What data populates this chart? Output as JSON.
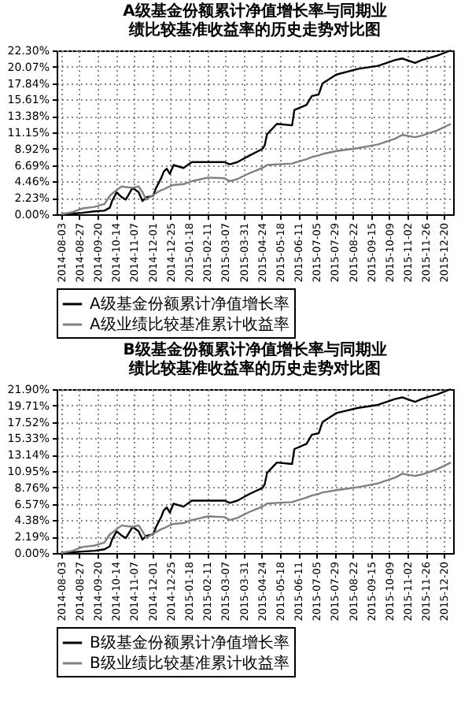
{
  "chart_data": [
    {
      "type": "line",
      "title": "A级基金份额累计净值增长率与同期业绩比较基准收益率的历史走势对比图",
      "x": [
        "2014-08-03",
        "2014-08-18",
        "2014-08-31",
        "2014-09-16",
        "2014-09-29",
        "2014-10-06",
        "2014-10-09",
        "2014-10-15",
        "2014-10-22",
        "2014-10-27",
        "2014-11-05",
        "2014-11-13",
        "2014-11-18",
        "2014-11-23",
        "2014-12-02",
        "2014-12-06",
        "2014-12-13",
        "2014-12-16",
        "2014-12-20",
        "2014-12-24",
        "2014-12-29",
        "2015-01-11",
        "2015-01-22",
        "2015-02-12",
        "2015-03-06",
        "2015-03-13",
        "2015-03-23",
        "2015-04-08",
        "2015-04-25",
        "2015-04-28",
        "2015-05-01",
        "2015-05-14",
        "2015-06-03",
        "2015-06-06",
        "2015-06-22",
        "2015-06-29",
        "2015-07-08",
        "2015-07-13",
        "2015-07-31",
        "2015-08-29",
        "2015-09-24",
        "2015-10-17",
        "2015-10-26",
        "2015-11-12",
        "2015-11-21",
        "2015-12-11",
        "2015-12-29"
      ],
      "series": [
        {
          "name": "A级基金份额累计净值增长率",
          "color": "#000000",
          "values": [
            0,
            0.1,
            0.2,
            0.4,
            0.5,
            0.9,
            1.8,
            3.0,
            2.3,
            2.0,
            3.6,
            3.0,
            1.8,
            2.3,
            2.5,
            3.6,
            5.0,
            5.8,
            6.2,
            5.5,
            6.7,
            6.3,
            7.1,
            7.1,
            7.1,
            6.8,
            7.1,
            8.0,
            8.9,
            9.4,
            10.9,
            12.3,
            12.1,
            14.2,
            14.9,
            16.1,
            16.3,
            17.8,
            19.0,
            19.8,
            20.2,
            21.0,
            21.2,
            20.6,
            21.0,
            21.6,
            22.3
          ]
        },
        {
          "name": "A级业绩比较基准累计收益率",
          "color": "#808080",
          "values": [
            0,
            0.3,
            0.8,
            1.0,
            1.4,
            2.5,
            2.8,
            3.3,
            3.8,
            3.7,
            3.6,
            3.8,
            3.0,
            2.0,
            2.6,
            2.9,
            3.3,
            3.4,
            3.6,
            3.8,
            4.0,
            4.1,
            4.5,
            5.0,
            4.9,
            4.5,
            4.8,
            5.6,
            6.3,
            6.5,
            6.7,
            6.8,
            6.9,
            7.0,
            7.5,
            7.8,
            8.0,
            8.2,
            8.6,
            9.0,
            9.5,
            10.3,
            10.8,
            10.5,
            10.7,
            11.4,
            12.3
          ]
        }
      ],
      "xlim": [
        "2014-07-28",
        "2016-01-01"
      ],
      "xticks": [
        "2014-08-03",
        "2014-08-27",
        "2014-09-20",
        "2014-10-14",
        "2014-11-07",
        "2014-12-01",
        "2014-12-25",
        "2015-01-18",
        "2015-02-11",
        "2015-03-07",
        "2015-03-31",
        "2015-04-24",
        "2015-05-18",
        "2015-06-11",
        "2015-07-05",
        "2015-07-29",
        "2015-08-22",
        "2015-09-15",
        "2015-10-09",
        "2015-11-02",
        "2015-11-26",
        "2015-12-20"
      ],
      "ylim": [
        0,
        22.3
      ],
      "yticks": [
        {
          "value": 0,
          "label": "0.00%"
        },
        {
          "value": 2.23,
          "label": "2.23%"
        },
        {
          "value": 4.46,
          "label": "4.46%"
        },
        {
          "value": 6.69,
          "label": "6.69%"
        },
        {
          "value": 8.92,
          "label": "8.92%"
        },
        {
          "value": 11.15,
          "label": "11.15%"
        },
        {
          "value": 13.38,
          "label": "13.38%"
        },
        {
          "value": 15.61,
          "label": "15.61%"
        },
        {
          "value": 17.84,
          "label": "17.84%"
        },
        {
          "value": 20.07,
          "label": "20.07%"
        },
        {
          "value": 22.3,
          "label": "22.30%"
        }
      ],
      "grid": true,
      "legend": "bottom"
    },
    {
      "type": "line",
      "title": "B级基金份额累计净值增长率与同期业绩比较基准收益率的历史走势对比图",
      "x": [
        "2014-08-03",
        "2014-08-18",
        "2014-08-31",
        "2014-09-16",
        "2014-09-29",
        "2014-10-06",
        "2014-10-09",
        "2014-10-15",
        "2014-10-22",
        "2014-10-27",
        "2014-11-05",
        "2014-11-13",
        "2014-11-18",
        "2014-11-23",
        "2014-12-02",
        "2014-12-06",
        "2014-12-13",
        "2014-12-16",
        "2014-12-20",
        "2014-12-24",
        "2014-12-29",
        "2015-01-11",
        "2015-01-22",
        "2015-02-12",
        "2015-03-06",
        "2015-03-13",
        "2015-03-23",
        "2015-04-08",
        "2015-04-25",
        "2015-04-28",
        "2015-05-01",
        "2015-05-14",
        "2015-06-03",
        "2015-06-06",
        "2015-06-22",
        "2015-06-29",
        "2015-07-08",
        "2015-07-13",
        "2015-07-31",
        "2015-08-29",
        "2015-09-24",
        "2015-10-17",
        "2015-10-26",
        "2015-11-12",
        "2015-11-21",
        "2015-12-11",
        "2015-12-29"
      ],
      "series": [
        {
          "name": "B级基金份额累计净值增长率",
          "color": "#000000",
          "values": [
            0,
            0.1,
            0.2,
            0.3,
            0.5,
            0.9,
            1.8,
            2.9,
            2.3,
            2.0,
            3.5,
            2.9,
            1.8,
            2.3,
            2.5,
            3.5,
            4.9,
            5.7,
            6.1,
            5.4,
            6.6,
            6.2,
            7.0,
            7.0,
            7.0,
            6.7,
            7.0,
            7.9,
            8.7,
            9.2,
            10.7,
            12.1,
            11.9,
            13.9,
            14.6,
            15.8,
            16.0,
            17.5,
            18.7,
            19.4,
            19.8,
            20.6,
            20.8,
            20.2,
            20.6,
            21.2,
            21.9
          ]
        },
        {
          "name": "B级业绩比较基准累计收益率",
          "color": "#808080",
          "values": [
            0,
            0.3,
            0.8,
            1.0,
            1.4,
            2.5,
            2.7,
            3.2,
            3.7,
            3.6,
            3.5,
            3.7,
            2.9,
            2.0,
            2.6,
            2.8,
            3.2,
            3.3,
            3.5,
            3.7,
            3.9,
            4.0,
            4.4,
            4.9,
            4.8,
            4.4,
            4.7,
            5.5,
            6.2,
            6.4,
            6.6,
            6.7,
            6.8,
            6.9,
            7.4,
            7.7,
            7.9,
            8.1,
            8.4,
            8.8,
            9.3,
            10.1,
            10.6,
            10.3,
            10.5,
            11.2,
            12.1
          ]
        }
      ],
      "xlim": [
        "2014-07-28",
        "2016-01-01"
      ],
      "xticks": [
        "2014-08-03",
        "2014-08-27",
        "2014-09-20",
        "2014-10-14",
        "2014-11-07",
        "2014-12-01",
        "2014-12-25",
        "2015-01-18",
        "2015-02-11",
        "2015-03-07",
        "2015-03-31",
        "2015-04-24",
        "2015-05-18",
        "2015-06-11",
        "2015-07-05",
        "2015-07-29",
        "2015-08-22",
        "2015-09-15",
        "2015-10-09",
        "2015-11-02",
        "2015-11-26",
        "2015-12-20"
      ],
      "ylim": [
        0,
        21.9
      ],
      "yticks": [
        {
          "value": 0,
          "label": "0.00%"
        },
        {
          "value": 2.19,
          "label": "2.19%"
        },
        {
          "value": 4.38,
          "label": "4.38%"
        },
        {
          "value": 6.57,
          "label": "6.57%"
        },
        {
          "value": 8.76,
          "label": "8.76%"
        },
        {
          "value": 10.95,
          "label": "10.95%"
        },
        {
          "value": 13.14,
          "label": "13.14%"
        },
        {
          "value": 15.33,
          "label": "15.33%"
        },
        {
          "value": 17.52,
          "label": "17.52%"
        },
        {
          "value": 19.71,
          "label": "19.71%"
        },
        {
          "value": 21.9,
          "label": "21.90%"
        }
      ],
      "grid": true,
      "legend": "bottom"
    }
  ]
}
